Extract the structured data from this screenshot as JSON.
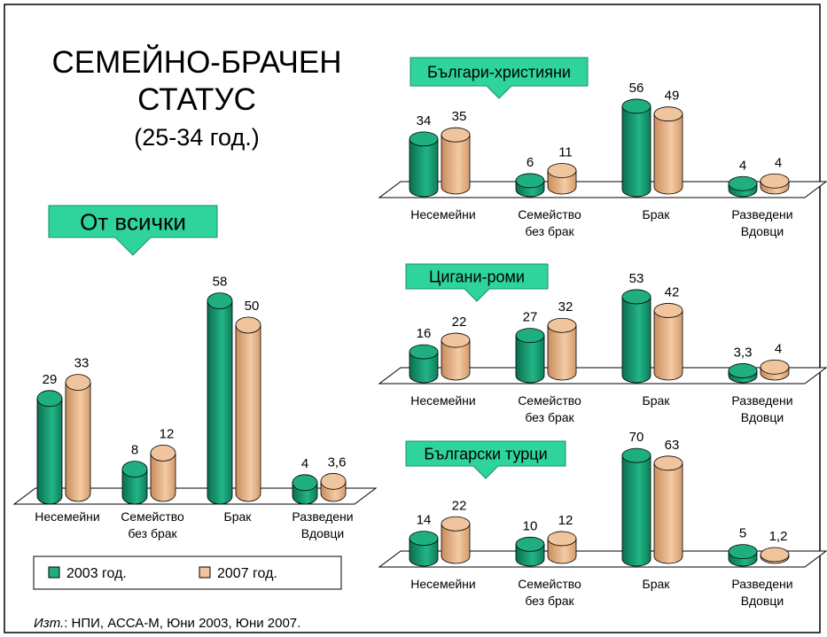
{
  "title": [
    "СЕМЕЙНО-БРАЧЕН",
    "СТАТУС",
    "(25-34 год.)"
  ],
  "source": {
    "prefix": "Изт.",
    "text": ":  НПИ, АССА-М, Юни 2003, Юни 2007."
  },
  "chart_data": [
    {
      "type": "bar",
      "title": "От всички",
      "categories": [
        [
          "Несемейни"
        ],
        [
          "Семейство",
          "без брак"
        ],
        [
          "Брак"
        ],
        [
          "Разведени",
          "Вдовци"
        ]
      ],
      "series": [
        {
          "name": "2003 год.",
          "color": "#1fae80",
          "values": [
            29,
            8,
            58,
            4
          ]
        },
        {
          "name": "2007 год.",
          "color": "#f0c49c",
          "values": [
            33,
            12,
            50,
            3.6
          ],
          "value_labels": [
            "33",
            "12",
            "50",
            "3,6"
          ]
        }
      ],
      "legend": true
    },
    {
      "type": "bar",
      "title": "Българи-християни",
      "categories": [
        [
          "Несемейни"
        ],
        [
          "Семейство",
          "без брак"
        ],
        [
          "Брак"
        ],
        [
          "Разведени",
          "Вдовци"
        ]
      ],
      "series": [
        {
          "color": "#1fae80",
          "values": [
            34,
            6,
            56,
            4
          ]
        },
        {
          "color": "#f0c49c",
          "values": [
            35,
            11,
            49,
            4
          ]
        }
      ]
    },
    {
      "type": "bar",
      "title": "Цигани-роми",
      "categories": [
        [
          "Несемейни"
        ],
        [
          "Семейство",
          "без брак"
        ],
        [
          "Брак"
        ],
        [
          "Разведени",
          "Вдовци"
        ]
      ],
      "series": [
        {
          "color": "#1fae80",
          "values": [
            16,
            27,
            53,
            3.3
          ],
          "value_labels": [
            "16",
            "27",
            "53",
            "3,3"
          ]
        },
        {
          "color": "#f0c49c",
          "values": [
            22,
            32,
            42,
            4
          ]
        }
      ]
    },
    {
      "type": "bar",
      "title": "Български турци",
      "categories": [
        [
          "Несемейни"
        ],
        [
          "Семейство",
          "без брак"
        ],
        [
          "Брак"
        ],
        [
          "Разведени",
          "Вдовци"
        ]
      ],
      "series": [
        {
          "color": "#1fae80",
          "values": [
            14,
            10,
            70,
            5
          ]
        },
        {
          "color": "#f0c49c",
          "values": [
            22,
            12,
            63,
            1.2
          ],
          "value_labels": [
            "22",
            "12",
            "63",
            "1,2"
          ]
        }
      ]
    }
  ]
}
